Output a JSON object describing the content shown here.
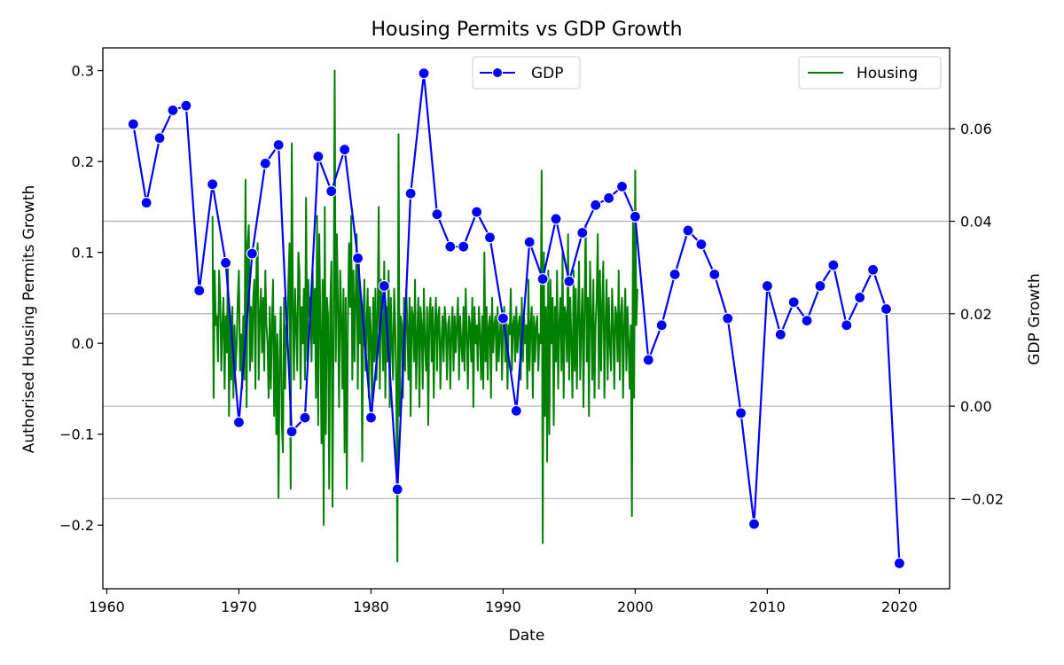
{
  "chart_data": {
    "type": "line",
    "title": "Housing Permits vs GDP Growth",
    "xlabel": "Date",
    "ylabel_left": "Authorised Housing Permits Growth",
    "ylabel_right": "GDP Growth",
    "xlim": [
      1959.7,
      2023.8
    ],
    "ylim_left": [
      -0.27,
      0.325
    ],
    "ylim_right": [
      -0.0395,
      0.0775
    ],
    "x_ticks": [
      1960,
      1970,
      1980,
      1990,
      2000,
      2010,
      2020
    ],
    "x_tick_labels": [
      "1960",
      "1970",
      "1980",
      "1990",
      "2000",
      "2010",
      "2020"
    ],
    "left_ticks": [
      -0.2,
      -0.1,
      0.0,
      0.1,
      0.2,
      0.3
    ],
    "left_tick_labels": [
      "−0.2",
      "−0.1",
      "0.0",
      "0.1",
      "0.2",
      "0.3"
    ],
    "right_ticks": [
      -0.02,
      0.0,
      0.02,
      0.04,
      0.06
    ],
    "right_tick_labels": [
      "−0.02",
      "0.00",
      "0.02",
      "0.04",
      "0.06"
    ],
    "grid": "horizontal lines at right-axis ticks",
    "series": [
      {
        "name": "GDP",
        "axis": "right",
        "color": "#0000ff",
        "marker": "circle",
        "x": [
          1962,
          1963,
          1964,
          1965,
          1966,
          1967,
          1968,
          1969,
          1970,
          1971,
          1972,
          1973,
          1974,
          1975,
          1976,
          1977,
          1978,
          1979,
          1980,
          1981,
          1982,
          1983,
          1984,
          1985,
          1986,
          1987,
          1988,
          1989,
          1990,
          1991,
          1992,
          1993,
          1994,
          1995,
          1996,
          1997,
          1998,
          1999,
          2000,
          2001,
          2002,
          2003,
          2004,
          2005,
          2006,
          2007,
          2008,
          2009,
          2010,
          2011,
          2012,
          2013,
          2014,
          2015,
          2016,
          2017,
          2018,
          2019,
          2020
        ],
        "y": [
          0.061,
          0.044,
          0.058,
          0.064,
          0.065,
          0.025,
          0.048,
          0.031,
          -0.0035,
          0.033,
          0.0525,
          0.0565,
          -0.0055,
          -0.0025,
          0.054,
          0.0465,
          0.0555,
          0.032,
          -0.0025,
          0.026,
          -0.018,
          0.046,
          0.072,
          0.0415,
          0.0345,
          0.0345,
          0.042,
          0.0365,
          0.019,
          -0.001,
          0.0355,
          0.0275,
          0.0405,
          0.027,
          0.0375,
          0.0435,
          0.045,
          0.0475,
          0.041,
          0.01,
          0.0175,
          0.0285,
          0.038,
          0.035,
          0.0285,
          0.019,
          -0.0015,
          -0.0255,
          0.026,
          0.0155,
          0.0225,
          0.0185,
          0.026,
          0.0305,
          0.0175,
          0.0235,
          0.0295,
          0.021,
          -0.034
        ]
      },
      {
        "name": "Housing",
        "axis": "left",
        "color": "#008000",
        "start": 1968.0,
        "step": 0.08333,
        "values": [
          0.14,
          -0.06,
          0.08,
          0.02,
          0.03,
          -0.02,
          0.08,
          0.05,
          -0.03,
          0.02,
          0.05,
          -0.05,
          0.03,
          -0.01,
          0.09,
          -0.08,
          0.03,
          -0.04,
          0.04,
          -0.06,
          0.02,
          -0.03,
          0.0,
          0.05,
          0.08,
          -0.03,
          0.01,
          -0.05,
          0.03,
          -0.04,
          0.18,
          -0.07,
          0.11,
          0.13,
          -0.03,
          0.04,
          -0.02,
          0.05,
          0.07,
          -0.05,
          0.09,
          0.11,
          -0.04,
          0.03,
          0.06,
          -0.01,
          0.05,
          -0.03,
          0.08,
          0.02,
          0.0,
          -0.06,
          0.04,
          -0.05,
          0.02,
          0.07,
          -0.08,
          0.03,
          -0.1,
          0.01,
          -0.17,
          -0.02,
          0.04,
          -0.09,
          -0.12,
          0.05,
          -0.05,
          0.02,
          0.0,
          0.07,
          0.11,
          -0.16,
          0.22,
          0.05,
          -0.04,
          0.06,
          0.02,
          -0.03,
          0.1,
          0.08,
          -0.05,
          0.04,
          0.0,
          0.06,
          -0.04,
          0.16,
          -0.02,
          0.07,
          0.03,
          0.05,
          -0.02,
          0.08,
          0.0,
          0.06,
          -0.06,
          0.14,
          -0.09,
          0.12,
          0.02,
          -0.11,
          0.07,
          -0.2,
          0.15,
          -0.1,
          0.05,
          0.03,
          -0.16,
          0.04,
          0.09,
          -0.18,
          0.01,
          0.3,
          -0.02,
          0.12,
          0.04,
          -0.07,
          0.08,
          0.03,
          -0.05,
          0.06,
          -0.12,
          0.05,
          -0.16,
          0.02,
          0.11,
          0.04,
          0.14,
          -0.04,
          0.08,
          -0.02,
          0.05,
          0.12,
          -0.05,
          0.09,
          0.0,
          0.05,
          -0.13,
          0.03,
          0.07,
          -0.03,
          0.02,
          0.06,
          -0.06,
          0.04,
          0.01,
          -0.08,
          0.05,
          -0.02,
          0.06,
          -0.04,
          0.03,
          0.15,
          -0.05,
          0.07,
          0.02,
          -0.03,
          0.09,
          -0.06,
          0.04,
          -0.02,
          0.08,
          -0.07,
          0.05,
          0.0,
          -0.04,
          0.06,
          0.02,
          -0.05,
          -0.24,
          0.23,
          -0.08,
          0.03,
          0.02,
          -0.06,
          0.05,
          -0.03,
          0.06,
          0.02,
          -0.04,
          0.05,
          -0.08,
          0.04,
          0.03,
          -0.02,
          0.07,
          -0.05,
          0.01,
          0.05,
          -0.07,
          0.04,
          0.02,
          -0.05,
          0.06,
          0.0,
          -0.03,
          0.04,
          -0.09,
          0.03,
          0.05,
          -0.02,
          0.04,
          -0.06,
          0.02,
          0.05,
          -0.03,
          0.03,
          0.04,
          -0.05,
          0.0,
          0.03,
          -0.02,
          0.04,
          0.02,
          -0.04,
          0.02,
          0.03,
          -0.05,
          0.01,
          0.04,
          -0.03,
          0.03,
          -0.01,
          0.02,
          0.05,
          -0.04,
          0.03,
          0.0,
          -0.02,
          0.04,
          -0.03,
          0.06,
          0.01,
          -0.05,
          0.03,
          0.02,
          -0.02,
          0.05,
          -0.07,
          0.04,
          0.0,
          0.02,
          -0.03,
          0.04,
          0.01,
          -0.04,
          0.03,
          -0.05,
          0.1,
          -0.02,
          0.04,
          -0.04,
          0.02,
          0.03,
          -0.06,
          0.05,
          -0.01,
          0.02,
          0.03,
          -0.03,
          0.04,
          -0.02,
          0.01,
          0.03,
          -0.04,
          0.02,
          0.04,
          -0.02,
          0.03,
          -0.05,
          0.02,
          0.01,
          0.06,
          -0.03,
          0.02,
          0.03,
          -0.02,
          0.04,
          -0.01,
          0.02,
          0.03,
          -0.04,
          0.05,
          -0.02,
          0.03,
          0.0,
          0.02,
          -0.05,
          0.07,
          -0.03,
          0.02,
          0.04,
          -0.06,
          0.03,
          -0.02,
          0.02,
          0.03,
          -0.03,
          0.01,
          0.0,
          0.19,
          -0.22,
          0.1,
          -0.08,
          0.04,
          -0.13,
          0.08,
          -0.1,
          0.07,
          0.0,
          0.05,
          -0.09,
          0.04,
          -0.02,
          0.08,
          -0.05,
          0.02,
          0.05,
          -0.03,
          0.1,
          -0.06,
          0.04,
          0.03,
          -0.02,
          0.12,
          -0.04,
          0.05,
          0.0,
          -0.06,
          0.08,
          -0.03,
          0.06,
          -0.05,
          0.03,
          0.09,
          -0.04,
          0.02,
          0.06,
          -0.07,
          0.04,
          0.13,
          -0.02,
          0.05,
          -0.08,
          0.09,
          0.03,
          -0.04,
          0.07,
          -0.06,
          0.02,
          0.05,
          0.12,
          -0.05,
          0.08,
          -0.03,
          0.04,
          0.09,
          -0.06,
          0.02,
          0.07,
          -0.04,
          0.05,
          0.0,
          -0.03,
          0.06,
          0.02,
          -0.05,
          0.04,
          0.03,
          -0.02,
          0.08,
          -0.04,
          0.03,
          0.05,
          -0.06,
          0.02,
          0.06,
          -0.03,
          0.04,
          0.0,
          -0.05,
          0.02,
          -0.19,
          0.14,
          -0.06,
          0.19,
          0.02,
          0.06
        ]
      }
    ],
    "legends": [
      {
        "label": "GDP",
        "position": "upper-center"
      },
      {
        "label": "Housing",
        "position": "upper-right"
      }
    ]
  }
}
